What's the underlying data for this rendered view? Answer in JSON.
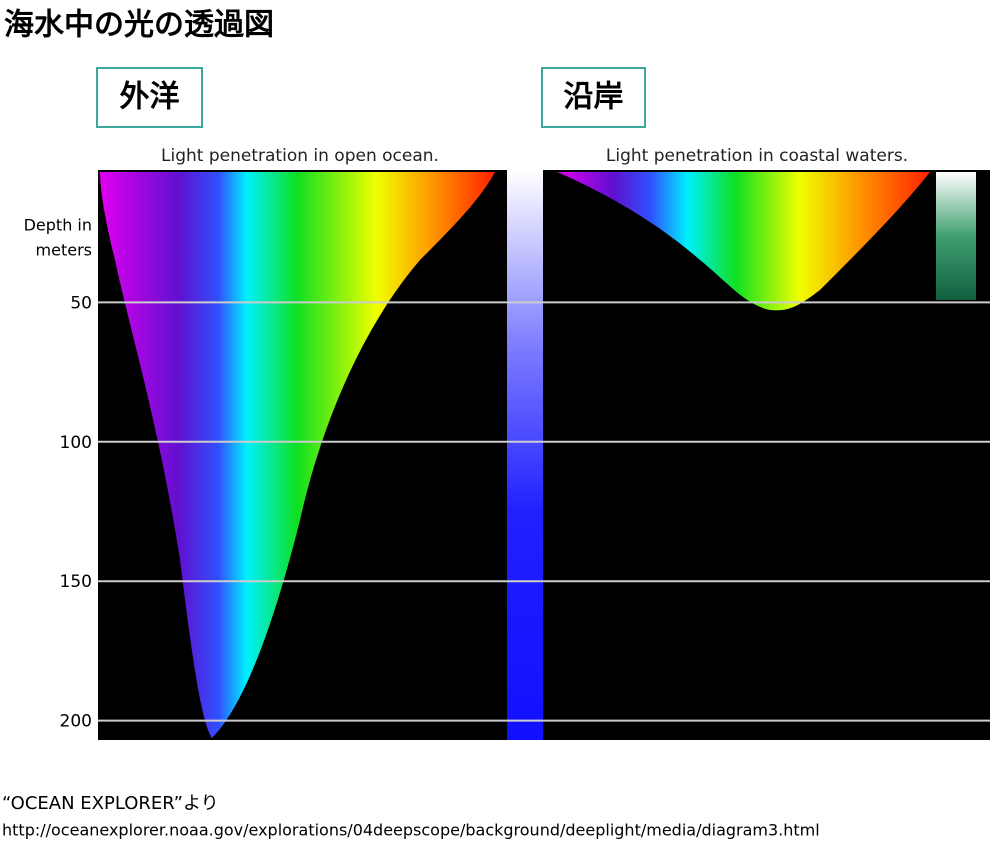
{
  "header": {
    "title": "海水中の光の透過図"
  },
  "panels": [
    {
      "label": "外洋",
      "caption": "Light penetration in open ocean."
    },
    {
      "label": "沿岸",
      "caption": "Light penetration in coastal waters."
    }
  ],
  "depth_axis": {
    "label_lines": [
      "Depth in",
      "meters"
    ],
    "ticks": [
      50,
      100,
      150,
      200
    ]
  },
  "footer": {
    "source": "“OCEAN EXPLORER”より",
    "url": "http://oceanexplorer.noaa.gov/explorations/04deepscope/background/deeplight/media/diagram3.html"
  }
}
